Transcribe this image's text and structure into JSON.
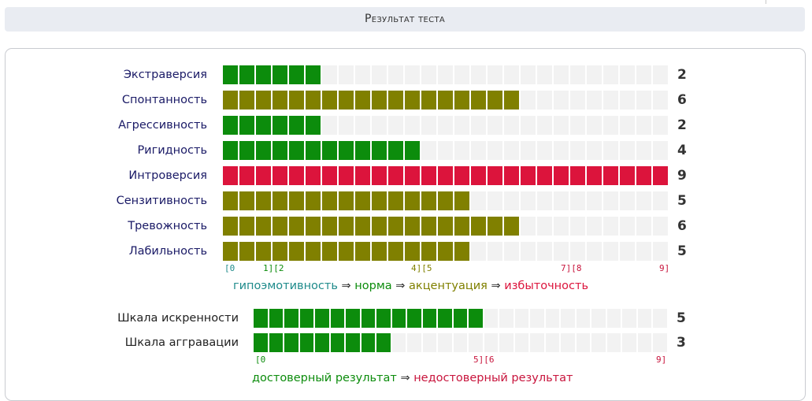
{
  "header": {
    "title": "Результат теста"
  },
  "colors": {
    "hypo": "#1f8b8b",
    "norm": "#0c8c0c",
    "accent": "#808000",
    "excess": "#dc143c",
    "empty": "#f2f2f2",
    "reliable": "#0c8c0c",
    "unreliable": "#c8143c"
  },
  "scales": {
    "max": 9,
    "items": [
      {
        "label": "Экстраверсия",
        "value": 2,
        "display": "2",
        "zone": "norm"
      },
      {
        "label": "Спонтанность",
        "value": 6,
        "display": "6",
        "zone": "accent"
      },
      {
        "label": "Агрессивность",
        "value": 2,
        "display": "2",
        "zone": "norm"
      },
      {
        "label": "Ригидность",
        "value": 4,
        "display": "4",
        "zone": "norm"
      },
      {
        "label": "Интроверсия",
        "value": 9,
        "display": "9",
        "zone": "excess"
      },
      {
        "label": "Сензитивность",
        "value": 5,
        "display": "5",
        "zone": "accent"
      },
      {
        "label": "Тревожность",
        "value": 6,
        "display": "6",
        "zone": "accent"
      },
      {
        "label": "Лабильность",
        "value": 5,
        "display": "5",
        "zone": "accent"
      }
    ],
    "ticks": [
      {
        "text": "[0",
        "zone": "hypo"
      },
      {
        "text": "1][2",
        "zone": "norm"
      },
      {
        "text": "4][5",
        "zone": "accent"
      },
      {
        "text": "7][8",
        "zone": "excess"
      },
      {
        "text": "9]",
        "zone": "excess"
      }
    ],
    "legend": {
      "hypo": "гипоэмотивность",
      "arrow": "⇒",
      "norm": "норма",
      "accent": "акцентуация",
      "excess": "избыточность"
    }
  },
  "validity": {
    "max": 9,
    "items": [
      {
        "label": "Шкала искренности",
        "value": 5,
        "display": "5"
      },
      {
        "label": "Шкала аггравации",
        "value": 3,
        "display": "3"
      }
    ],
    "ticks": [
      {
        "text": "[0",
        "zone": "reliable"
      },
      {
        "text": "5][6",
        "zone": "unreliable"
      },
      {
        "text": "9]",
        "zone": "unreliable"
      }
    ],
    "legend": {
      "reliable": "достоверный результат",
      "arrow": "⇒",
      "unreliable": "недостоверный результат"
    }
  }
}
